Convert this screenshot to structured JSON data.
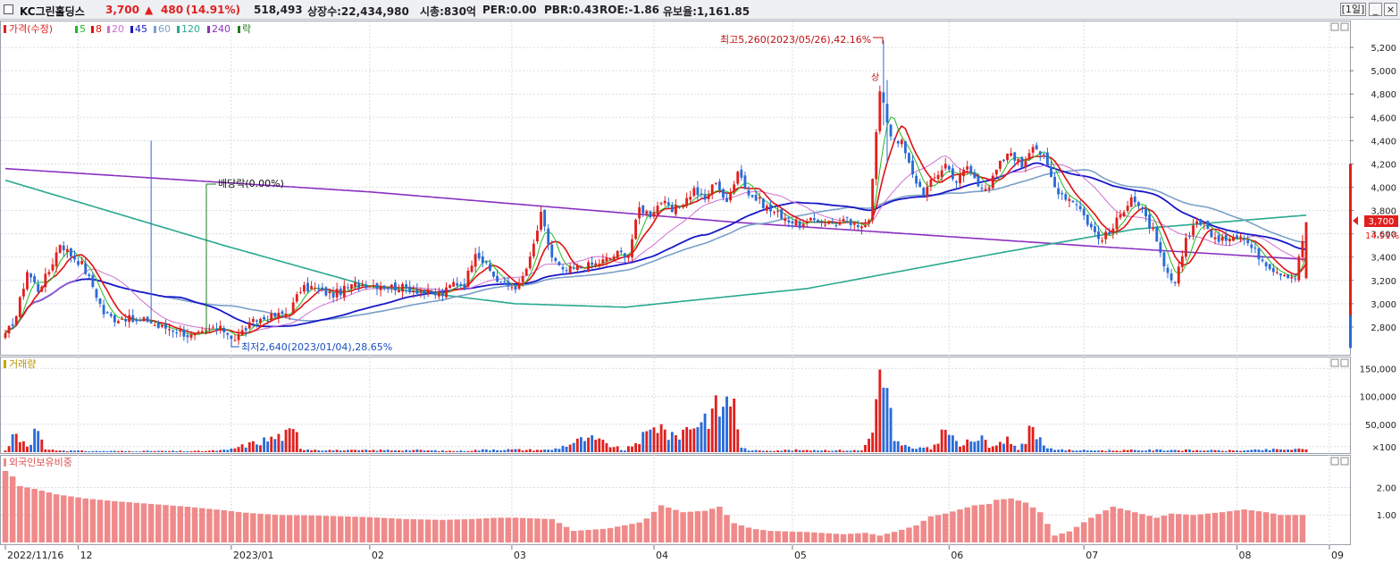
{
  "header": {
    "name": "KC그린홀딩스",
    "price": "3,700",
    "change_arrow": "▲",
    "change": "480",
    "change_pct": "(14.91%)",
    "volume": "518,493",
    "listed": "상장수:22,434,980",
    "mcap": "시총:830억",
    "per": "PER:0.00",
    "pbr": "PBR:0.43",
    "roe": "ROE:-1.86",
    "reserve": "유보율:1,161.85",
    "period": "[1일]",
    "btn_min": "_",
    "btn_max": "□",
    "btn_close": "×"
  },
  "colors": {
    "up": "#e0201e",
    "down": "#2a6bd6",
    "ma5": "#22bb22",
    "ma8": "#e01010",
    "ma20": "#d070d0",
    "ma45": "#1818c8",
    "ma60": "#7aa0c8",
    "ma120": "#2aa890",
    "ma240": "#8a30c0",
    "foreign": "#f08a8a",
    "grid": "#d8dce4"
  },
  "legend": {
    "price_prefix": "가격(수정)",
    "items": [
      {
        "label": "5",
        "color": "#22bb22"
      },
      {
        "label": "8",
        "color": "#e01010"
      },
      {
        "label": "20",
        "color": "#d070d0"
      },
      {
        "label": "45",
        "color": "#1818c8"
      },
      {
        "label": "60",
        "color": "#7aa0c8"
      },
      {
        "label": "120",
        "color": "#2aa890"
      },
      {
        "label": "240",
        "color": "#8a30c0"
      },
      {
        "label": "락",
        "color": "#207a20"
      }
    ],
    "volume": "거래량",
    "foreign": "외국인보유비중"
  },
  "chart_data": {
    "type": "candlestick",
    "title": "KC그린홀딩스",
    "x_labels": [
      "2022/11/16",
      "12",
      "2023/01",
      "02",
      "03",
      "04",
      "05",
      "06",
      "07",
      "08",
      "09"
    ],
    "price_axis": {
      "ticks": [
        "5,200",
        "5,000",
        "4,800",
        "4,600",
        "4,400",
        "4,200",
        "4,000",
        "3,800",
        "3,600",
        "3,400",
        "3,200",
        "3,000",
        "2,800"
      ],
      "range": [
        2600,
        5400
      ]
    },
    "volume_axis": {
      "ticks": [
        "150,000",
        "100,000",
        "50,000",
        "×100"
      ],
      "range": [
        0,
        160000
      ]
    },
    "foreign_axis": {
      "ticks": [
        "2.00",
        "1.00"
      ],
      "range": [
        0,
        2.6
      ]
    },
    "current_price_label": "3,700",
    "current_pct_label": "14.91%",
    "annotations": {
      "high": "최고5,260(2023/05/26),42.16%",
      "low": "최저2,640(2023/01/04),28.65%",
      "dividend": "배당락(0.00%)",
      "limit_up": "상"
    },
    "price_anchors": [
      [
        0,
        2720
      ],
      [
        3,
        2900
      ],
      [
        6,
        3280
      ],
      [
        9,
        3120
      ],
      [
        12,
        3280
      ],
      [
        15,
        3520
      ],
      [
        18,
        3420
      ],
      [
        21,
        3340
      ],
      [
        24,
        3150
      ],
      [
        27,
        2920
      ],
      [
        30,
        2870
      ],
      [
        33,
        2880
      ],
      [
        36,
        2840
      ],
      [
        39,
        2860
      ],
      [
        42,
        2800
      ],
      [
        45,
        2790
      ],
      [
        48,
        2760
      ],
      [
        51,
        2720
      ],
      [
        54,
        2740
      ],
      [
        57,
        2790
      ],
      [
        60,
        2770
      ],
      [
        63,
        2700
      ],
      [
        66,
        2790
      ],
      [
        69,
        2860
      ],
      [
        72,
        2880
      ],
      [
        75,
        2900
      ],
      [
        78,
        2930
      ],
      [
        81,
        3120
      ],
      [
        84,
        3140
      ],
      [
        87,
        3100
      ],
      [
        90,
        3080
      ],
      [
        93,
        3120
      ],
      [
        96,
        3160
      ],
      [
        99,
        3170
      ],
      [
        102,
        3160
      ],
      [
        105,
        3150
      ],
      [
        108,
        3140
      ],
      [
        111,
        3130
      ],
      [
        114,
        3110
      ],
      [
        117,
        3080
      ],
      [
        120,
        3080
      ],
      [
        123,
        3180
      ],
      [
        126,
        3160
      ],
      [
        129,
        3460
      ],
      [
        132,
        3320
      ],
      [
        135,
        3200
      ],
      [
        138,
        3150
      ],
      [
        141,
        3150
      ],
      [
        144,
        3380
      ],
      [
        147,
        3760
      ],
      [
        150,
        3400
      ],
      [
        153,
        3270
      ],
      [
        156,
        3300
      ],
      [
        159,
        3320
      ],
      [
        162,
        3340
      ],
      [
        165,
        3380
      ],
      [
        168,
        3430
      ],
      [
        171,
        3430
      ],
      [
        174,
        3820
      ],
      [
        177,
        3770
      ],
      [
        180,
        3880
      ],
      [
        183,
        3790
      ],
      [
        186,
        3860
      ],
      [
        189,
        3980
      ],
      [
        192,
        3890
      ],
      [
        195,
        4060
      ],
      [
        198,
        3850
      ],
      [
        201,
        4160
      ],
      [
        204,
        3940
      ],
      [
        207,
        3880
      ],
      [
        210,
        3800
      ],
      [
        213,
        3760
      ],
      [
        216,
        3700
      ],
      [
        219,
        3670
      ],
      [
        222,
        3720
      ],
      [
        225,
        3700
      ],
      [
        228,
        3690
      ],
      [
        231,
        3710
      ],
      [
        234,
        3640
      ],
      [
        237,
        3740
      ],
      [
        240,
        4820
      ],
      [
        243,
        4450
      ],
      [
        246,
        4380
      ],
      [
        249,
        4100
      ],
      [
        252,
        3950
      ],
      [
        255,
        4080
      ],
      [
        258,
        4200
      ],
      [
        261,
        4050
      ],
      [
        264,
        4180
      ],
      [
        267,
        4020
      ],
      [
        270,
        4010
      ],
      [
        273,
        4200
      ],
      [
        276,
        4300
      ],
      [
        279,
        4180
      ],
      [
        282,
        4380
      ],
      [
        285,
        4250
      ],
      [
        288,
        4000
      ],
      [
        291,
        3920
      ],
      [
        294,
        3870
      ],
      [
        297,
        3700
      ],
      [
        300,
        3560
      ],
      [
        303,
        3600
      ],
      [
        306,
        3760
      ],
      [
        309,
        3930
      ],
      [
        312,
        3780
      ],
      [
        315,
        3620
      ],
      [
        318,
        3300
      ],
      [
        321,
        3150
      ],
      [
        324,
        3560
      ],
      [
        327,
        3720
      ],
      [
        330,
        3640
      ],
      [
        333,
        3520
      ],
      [
        336,
        3580
      ],
      [
        339,
        3600
      ],
      [
        342,
        3480
      ],
      [
        345,
        3380
      ],
      [
        348,
        3300
      ],
      [
        351,
        3260
      ],
      [
        354,
        3230
      ],
      [
        357,
        3700
      ]
    ],
    "event_bars": {
      "40": [
        4400,
        4200
      ],
      "241": [
        5260,
        4830
      ],
      "242": [
        4920,
        4500
      ]
    },
    "volume_anchors": [
      [
        0,
        3
      ],
      [
        2,
        32
      ],
      [
        4,
        18
      ],
      [
        7,
        13
      ],
      [
        8,
        42
      ],
      [
        9,
        38
      ],
      [
        11,
        5
      ],
      [
        16,
        3
      ],
      [
        24,
        2
      ],
      [
        40,
        2
      ],
      [
        55,
        2
      ],
      [
        61,
        4
      ],
      [
        80,
        36
      ],
      [
        81,
        6
      ],
      [
        92,
        3
      ],
      [
        110,
        4
      ],
      [
        124,
        2
      ],
      [
        134,
        5
      ],
      [
        147,
        4
      ],
      [
        150,
        4
      ],
      [
        160,
        26
      ],
      [
        170,
        3
      ],
      [
        180,
        50
      ],
      [
        182,
        22
      ],
      [
        200,
        96
      ],
      [
        202,
        8
      ],
      [
        205,
        3
      ],
      [
        220,
        4
      ],
      [
        235,
        3
      ],
      [
        238,
        35
      ],
      [
        240,
        148
      ],
      [
        242,
        115
      ],
      [
        244,
        20
      ],
      [
        246,
        12
      ],
      [
        248,
        10
      ],
      [
        250,
        6
      ],
      [
        252,
        8
      ],
      [
        254,
        5
      ],
      [
        258,
        40
      ],
      [
        262,
        10
      ],
      [
        268,
        30
      ],
      [
        270,
        8
      ],
      [
        275,
        28
      ],
      [
        278,
        4
      ],
      [
        282,
        45
      ],
      [
        285,
        12
      ],
      [
        288,
        4
      ],
      [
        300,
        3
      ],
      [
        320,
        4
      ],
      [
        330,
        3
      ],
      [
        340,
        3
      ],
      [
        350,
        5
      ],
      [
        357,
        5
      ]
    ],
    "foreign_anchors": [
      [
        0,
        2.6
      ],
      [
        2,
        2.4
      ],
      [
        4,
        2.05
      ],
      [
        8,
        1.95
      ],
      [
        14,
        1.75
      ],
      [
        22,
        1.6
      ],
      [
        30,
        1.5
      ],
      [
        40,
        1.4
      ],
      [
        50,
        1.3
      ],
      [
        60,
        1.17
      ],
      [
        66,
        1.08
      ],
      [
        75,
        1.0
      ],
      [
        85,
        0.98
      ],
      [
        100,
        0.92
      ],
      [
        110,
        0.85
      ],
      [
        120,
        0.82
      ],
      [
        128,
        0.85
      ],
      [
        135,
        0.9
      ],
      [
        140,
        0.9
      ],
      [
        150,
        0.85
      ],
      [
        156,
        0.42
      ],
      [
        165,
        0.5
      ],
      [
        175,
        0.75
      ],
      [
        180,
        1.35
      ],
      [
        186,
        1.1
      ],
      [
        192,
        1.15
      ],
      [
        196,
        1.3
      ],
      [
        200,
        0.7
      ],
      [
        205,
        0.5
      ],
      [
        210,
        0.42
      ],
      [
        220,
        0.38
      ],
      [
        230,
        0.3
      ],
      [
        236,
        0.35
      ],
      [
        240,
        0.25
      ],
      [
        245,
        0.42
      ],
      [
        250,
        0.62
      ],
      [
        254,
        0.95
      ],
      [
        258,
        1.05
      ],
      [
        262,
        1.2
      ],
      [
        266,
        1.35
      ],
      [
        270,
        1.4
      ],
      [
        272,
        1.55
      ],
      [
        276,
        1.6
      ],
      [
        280,
        1.45
      ],
      [
        284,
        1.1
      ],
      [
        288,
        0.25
      ],
      [
        292,
        0.4
      ],
      [
        298,
        0.9
      ],
      [
        304,
        1.3
      ],
      [
        310,
        1.1
      ],
      [
        316,
        0.9
      ],
      [
        320,
        1.05
      ],
      [
        326,
        1.0
      ],
      [
        334,
        1.1
      ],
      [
        340,
        1.2
      ],
      [
        346,
        1.1
      ],
      [
        350,
        1.0
      ],
      [
        357,
        1.0
      ]
    ]
  }
}
